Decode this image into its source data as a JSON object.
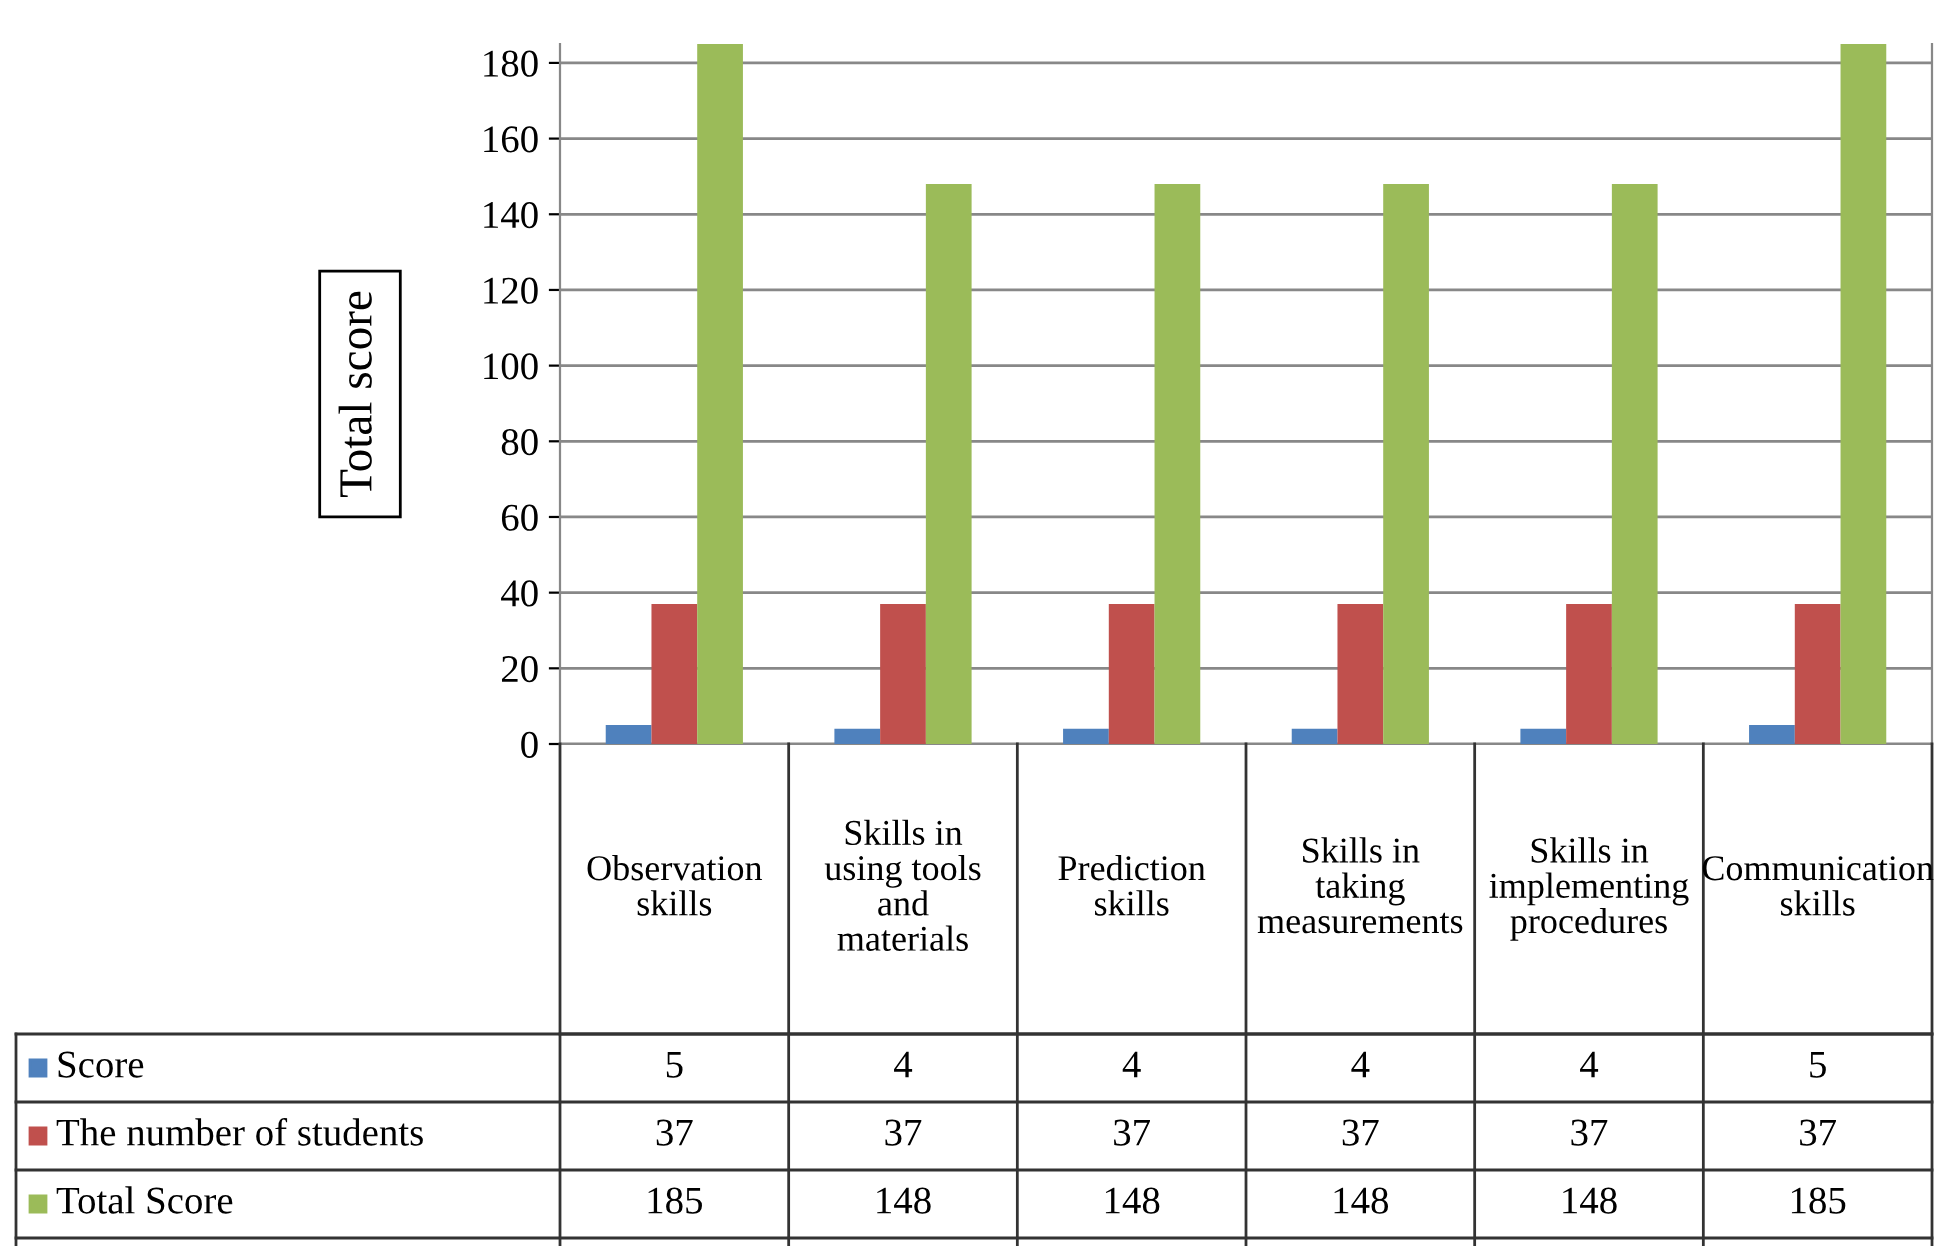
{
  "chart_data": {
    "type": "bar",
    "ylabel": "Total score",
    "categories": [
      "Observation skills",
      "Skills in using tools and materials",
      "Prediction skills",
      "Skills in taking measurements",
      "Skills in implementing procedures",
      "Communication skills"
    ],
    "series": [
      {
        "name": "Score",
        "color": "#4f81bd",
        "values": [
          5,
          4,
          4,
          4,
          4,
          5
        ]
      },
      {
        "name": "The number of students",
        "color": "#c0504d",
        "values": [
          37,
          37,
          37,
          37,
          37,
          37
        ]
      },
      {
        "name": "Total Score",
        "color": "#9bbb59",
        "values": [
          185,
          148,
          148,
          148,
          148,
          185
        ]
      }
    ],
    "ylim": [
      0,
      185
    ],
    "yticks": [
      0,
      20,
      40,
      60,
      80,
      100,
      120,
      140,
      160,
      180
    ],
    "grid": "y",
    "legend": "bottom",
    "data_labels": true
  }
}
